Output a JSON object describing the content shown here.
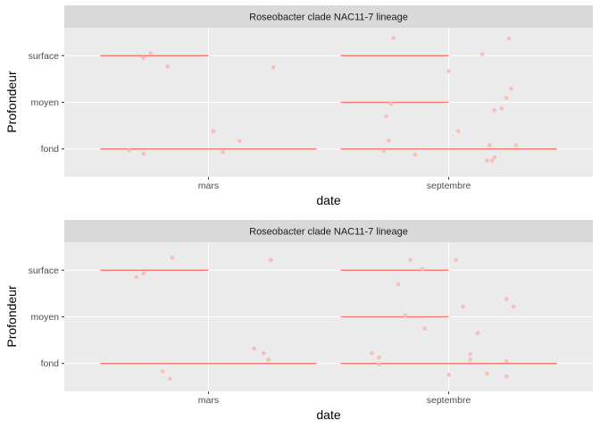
{
  "chart_data": [
    {
      "type": "scatter",
      "facet_label": "Roseobacter clade NAC11-7 lineage",
      "xlabel": "date",
      "ylabel": "Profondeur",
      "x_categories": [
        "mars",
        "septembre"
      ],
      "y_categories": [
        "fond",
        "moyen",
        "surface"
      ],
      "colors": {
        "point": "#f8bfb8",
        "median": "#f8766d",
        "panel": "#ebebeb",
        "grid": "#ffffff",
        "strip": "#d9d9d9"
      },
      "points": [
        {
          "x": 0.73,
          "y": 2.95
        },
        {
          "x": 0.76,
          "y": 3.05
        },
        {
          "x": 0.83,
          "y": 2.77
        },
        {
          "x": 0.67,
          "y": 0.97
        },
        {
          "x": 0.73,
          "y": 0.9
        },
        {
          "x": 1.02,
          "y": 1.38
        },
        {
          "x": 1.06,
          "y": 0.93
        },
        {
          "x": 1.13,
          "y": 1.17
        },
        {
          "x": 1.27,
          "y": 2.75
        },
        {
          "x": 1.77,
          "y": 3.38
        },
        {
          "x": 1.73,
          "y": 0.96
        },
        {
          "x": 1.75,
          "y": 1.18
        },
        {
          "x": 1.74,
          "y": 1.7
        },
        {
          "x": 1.76,
          "y": 1.97
        },
        {
          "x": 1.86,
          "y": 0.88
        },
        {
          "x": 2.0,
          "y": 2.67
        },
        {
          "x": 2.04,
          "y": 1.38
        },
        {
          "x": 2.14,
          "y": 3.03
        },
        {
          "x": 2.19,
          "y": 1.83
        },
        {
          "x": 2.22,
          "y": 1.87
        },
        {
          "x": 2.24,
          "y": 2.09
        },
        {
          "x": 2.26,
          "y": 2.29
        },
        {
          "x": 2.25,
          "y": 3.37
        },
        {
          "x": 2.17,
          "y": 1.08
        },
        {
          "x": 2.19,
          "y": 0.82
        },
        {
          "x": 2.16,
          "y": 0.75
        },
        {
          "x": 2.18,
          "y": 0.75
        },
        {
          "x": 2.28,
          "y": 1.08
        }
      ],
      "medians": [
        {
          "x": 1,
          "y": 1,
          "label": "mars-fond"
        },
        {
          "x": 1,
          "y": 3,
          "label": "mars-surface"
        },
        {
          "x": 2,
          "y": 1,
          "label": "septembre-fond"
        },
        {
          "x": 2,
          "y": 2,
          "label": "septembre-moyen"
        },
        {
          "x": 2,
          "y": 3,
          "label": "septembre-surface"
        }
      ]
    },
    {
      "type": "scatter",
      "facet_label": "Roseobacter clade NAC11-7 lineage",
      "xlabel": "date",
      "ylabel": "Profondeur",
      "x_categories": [
        "mars",
        "septembre"
      ],
      "y_categories": [
        "fond",
        "moyen",
        "surface"
      ],
      "colors": {
        "point": "#f8bfb8",
        "median": "#f8766d",
        "panel": "#ebebeb",
        "grid": "#ffffff",
        "strip": "#d9d9d9"
      },
      "points": [
        {
          "x": 0.7,
          "y": 2.85
        },
        {
          "x": 0.73,
          "y": 2.93
        },
        {
          "x": 0.85,
          "y": 3.27
        },
        {
          "x": 0.81,
          "y": 0.83
        },
        {
          "x": 0.84,
          "y": 0.67
        },
        {
          "x": 1.19,
          "y": 1.32
        },
        {
          "x": 1.23,
          "y": 1.22
        },
        {
          "x": 1.25,
          "y": 1.08
        },
        {
          "x": 1.26,
          "y": 3.22
        },
        {
          "x": 1.68,
          "y": 1.22
        },
        {
          "x": 1.71,
          "y": 1.13
        },
        {
          "x": 1.71,
          "y": 0.98
        },
        {
          "x": 1.79,
          "y": 2.7
        },
        {
          "x": 1.82,
          "y": 2.03
        },
        {
          "x": 1.84,
          "y": 3.22
        },
        {
          "x": 1.89,
          "y": 3.03
        },
        {
          "x": 1.9,
          "y": 1.75
        },
        {
          "x": 2.03,
          "y": 3.22
        },
        {
          "x": 2.06,
          "y": 2.22
        },
        {
          "x": 2.09,
          "y": 1.2
        },
        {
          "x": 2.09,
          "y": 1.08
        },
        {
          "x": 2.12,
          "y": 1.65
        },
        {
          "x": 2.16,
          "y": 0.78
        },
        {
          "x": 2.24,
          "y": 2.38
        },
        {
          "x": 2.27,
          "y": 2.22
        },
        {
          "x": 2.24,
          "y": 1.05
        },
        {
          "x": 2.24,
          "y": 0.72
        },
        {
          "x": 2.0,
          "y": 0.76
        }
      ],
      "medians": [
        {
          "x": 1,
          "y": 1,
          "label": "mars-fond"
        },
        {
          "x": 1,
          "y": 3,
          "label": "mars-surface"
        },
        {
          "x": 2,
          "y": 1,
          "label": "septembre-fond"
        },
        {
          "x": 2,
          "y": 2,
          "label": "septembre-moyen"
        },
        {
          "x": 2,
          "y": 3,
          "label": "septembre-surface"
        }
      ]
    }
  ]
}
